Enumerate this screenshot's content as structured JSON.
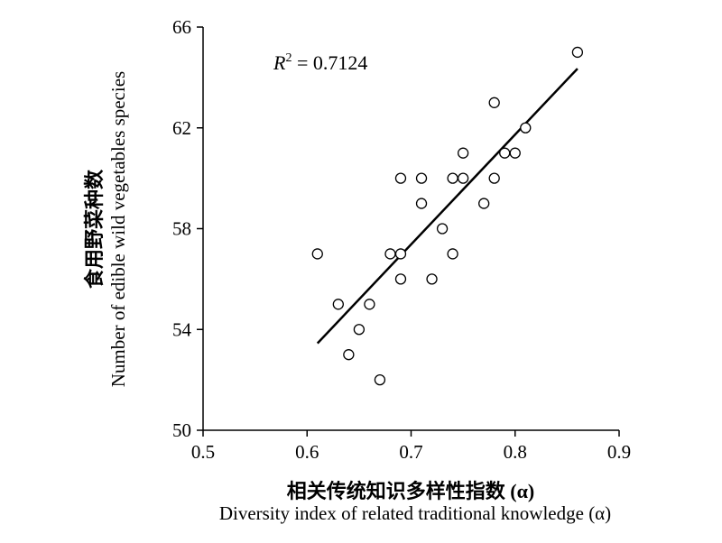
{
  "chart_data": {
    "type": "scatter",
    "xlabel_cn": "相关传统知识多样性指数 (α)",
    "xlabel_en": "Diversity index of related traditional knowledge (α)",
    "ylabel_cn": "食用野菜种数",
    "ylabel_en": "Number of edible wild vegetables species",
    "annotation": "R² = 0.7124",
    "xlim": [
      0.5,
      0.9
    ],
    "ylim": [
      50,
      66
    ],
    "x_ticks": [
      "0.5",
      "0.6",
      "0.7",
      "0.8",
      "0.9"
    ],
    "y_ticks": [
      "50",
      "54",
      "58",
      "62",
      "66"
    ],
    "points": [
      {
        "x": 0.61,
        "y": 57
      },
      {
        "x": 0.63,
        "y": 55
      },
      {
        "x": 0.64,
        "y": 53
      },
      {
        "x": 0.65,
        "y": 54
      },
      {
        "x": 0.66,
        "y": 55
      },
      {
        "x": 0.67,
        "y": 52
      },
      {
        "x": 0.68,
        "y": 57
      },
      {
        "x": 0.69,
        "y": 57
      },
      {
        "x": 0.69,
        "y": 56
      },
      {
        "x": 0.69,
        "y": 60
      },
      {
        "x": 0.71,
        "y": 60
      },
      {
        "x": 0.71,
        "y": 59
      },
      {
        "x": 0.72,
        "y": 56
      },
      {
        "x": 0.73,
        "y": 58
      },
      {
        "x": 0.74,
        "y": 60
      },
      {
        "x": 0.74,
        "y": 57
      },
      {
        "x": 0.75,
        "y": 61
      },
      {
        "x": 0.75,
        "y": 60
      },
      {
        "x": 0.77,
        "y": 59
      },
      {
        "x": 0.78,
        "y": 63
      },
      {
        "x": 0.78,
        "y": 60
      },
      {
        "x": 0.79,
        "y": 61
      },
      {
        "x": 0.8,
        "y": 61
      },
      {
        "x": 0.81,
        "y": 62
      },
      {
        "x": 0.86,
        "y": 65
      }
    ],
    "trendline": {
      "x1": 0.61,
      "y1": 53.45,
      "x2": 0.86,
      "y2": 64.35
    },
    "grid": false,
    "legend": "none"
  }
}
